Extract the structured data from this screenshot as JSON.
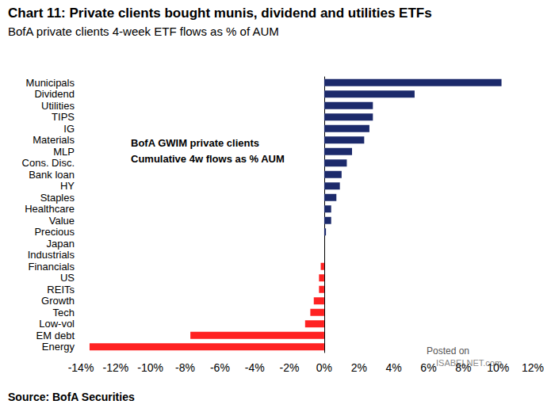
{
  "chart_data": {
    "type": "bar",
    "orientation": "horizontal",
    "title": "Chart 11: Private clients bought munis, dividend and utilities ETFs",
    "subtitle": "BofA private clients 4-week ETF flows as % of AUM",
    "annotation": [
      "BofA GWIM private clients",
      "Cumulative 4w flows as % AUM"
    ],
    "source": "Source: BofA Securities",
    "watermark": [
      "Posted on",
      "ISABELNET.com"
    ],
    "categories": [
      "Municipals",
      "Dividend",
      "Utilities",
      "TIPS",
      "IG",
      "Materials",
      "MLP",
      "Cons. Disc.",
      "Bank loan",
      "HY",
      "Staples",
      "Healthcare",
      "Value",
      "Precious",
      "Japan",
      "Industrials",
      "Financials",
      "US",
      "REITs",
      "Growth",
      "Tech",
      "Low-vol",
      "EM debt",
      "Energy"
    ],
    "values": [
      10.2,
      5.2,
      2.8,
      2.8,
      2.6,
      2.3,
      1.6,
      1.3,
      1.0,
      0.9,
      0.7,
      0.4,
      0.4,
      0.1,
      0,
      0,
      -0.2,
      -0.3,
      -0.3,
      -0.6,
      -0.8,
      -1.1,
      -7.7,
      -13.5
    ],
    "colors": [
      "#1c2a6b",
      "#1c2a6b",
      "#1c2a6b",
      "#1c2a6b",
      "#1c2a6b",
      "#1c2a6b",
      "#1c2a6b",
      "#1c2a6b",
      "#1c2a6b",
      "#1c2a6b",
      "#1c2a6b",
      "#1c2a6b",
      "#1c2a6b",
      "#1c2a6b",
      "#1c2a6b",
      "#1c2a6b",
      "#ff2222",
      "#ff2222",
      "#ff2222",
      "#ff2222",
      "#ff2222",
      "#ff2222",
      "#ff2222",
      "#ff2222"
    ],
    "xlim": [
      -14,
      12
    ],
    "xticks": [
      {
        "value": -14,
        "label": "-14%"
      },
      {
        "value": -12,
        "label": "-12%"
      },
      {
        "value": -10,
        "label": "-10%"
      },
      {
        "value": -8,
        "label": "-8%"
      },
      {
        "value": -6,
        "label": "-6%"
      },
      {
        "value": -4,
        "label": "-4%"
      },
      {
        "value": -2,
        "label": "-2%"
      },
      {
        "value": 0,
        "label": "0%"
      },
      {
        "value": 2,
        "label": "2%"
      },
      {
        "value": 4,
        "label": "4%"
      },
      {
        "value": 6,
        "label": "6%"
      },
      {
        "value": 8,
        "label": "8%"
      },
      {
        "value": 10,
        "label": "10%"
      },
      {
        "value": 12,
        "label": "12%"
      }
    ],
    "grid": false,
    "data_labels": false
  }
}
